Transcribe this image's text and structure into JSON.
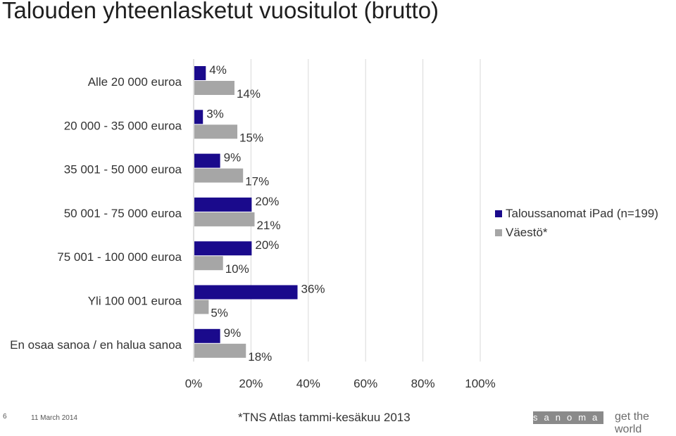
{
  "title": "Talouden yhteenlasketut vuositulot (brutto)",
  "chart_data": {
    "type": "bar",
    "orientation": "horizontal",
    "categories": [
      "Alle 20 000 euroa",
      "20 000 - 35 000 euroa",
      "35 001 - 50 000 euroa",
      "50 001 - 75 000 euroa",
      "75 001 - 100 000 euroa",
      "Yli 100 001 euroa",
      "En osaa sanoa / en halua sanoa"
    ],
    "series": [
      {
        "name": "Taloussanomat iPad (n=199)",
        "color": "#1a0a8c",
        "values": [
          4,
          3,
          9,
          20,
          20,
          36,
          9
        ]
      },
      {
        "name": "Väestö*",
        "color": "#a6a6a6",
        "values": [
          14,
          15,
          17,
          21,
          10,
          5,
          18
        ]
      }
    ],
    "x_ticks": [
      "0%",
      "20%",
      "40%",
      "60%",
      "80%",
      "100%"
    ],
    "xlim": [
      0,
      100
    ],
    "unit": "%",
    "grid": true,
    "legend_position": "right"
  },
  "footer": {
    "page_number": "6",
    "date": "11 March 2014",
    "note": "*TNS Atlas tammi-kesäkuu 2013",
    "brand": "sanoma",
    "tagline": "get the world"
  }
}
